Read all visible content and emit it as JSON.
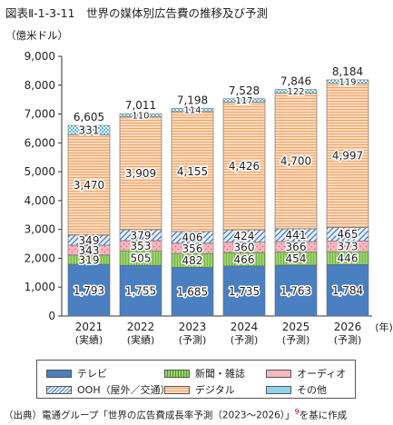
{
  "title": "図表Ⅱ-1-3-11　世界の媒体別広告費の推移及び予測",
  "unit_label": "（億米ドル）",
  "source": {
    "before": "（出典）電通グループ「世界の広告費成長率予測（2023～2026）」",
    "note_mark": "9",
    "after": "を基に作成"
  },
  "colors": {
    "tv": "#4a7fc1",
    "news": "#9bd26b",
    "audio": "#f4a5b0",
    "ooh": "#a9c8e8",
    "digital": "#f7c7a0",
    "other": "#8fd3e8"
  },
  "chart_data": {
    "type": "bar",
    "stacked": true,
    "categories": [
      "2021",
      "2022",
      "2023",
      "2024",
      "2025",
      "2026"
    ],
    "category_sublabels": [
      "(実績)",
      "(実績)",
      "(予測)",
      "(予測)",
      "(予測)",
      "(予測)"
    ],
    "x_unit_label": "(年)",
    "ylim": [
      0,
      9000
    ],
    "yticks": [
      "0",
      "1,000",
      "2,000",
      "3,000",
      "4,000",
      "5,000",
      "6,000",
      "7,000",
      "8,000",
      "9,000"
    ],
    "grid": false,
    "legend_position": "bottom",
    "totals": [
      "6,605",
      "7,011",
      "7,198",
      "7,528",
      "7,846",
      "8,184"
    ],
    "total_values": [
      6605,
      7011,
      7198,
      7528,
      7846,
      8184
    ],
    "series": [
      {
        "name": "テレビ",
        "key": "tv",
        "values": [
          1793,
          1755,
          1685,
          1735,
          1763,
          1784
        ],
        "labels": [
          "1,793",
          "1,755",
          "1,685",
          "1,735",
          "1,763",
          "1,784"
        ]
      },
      {
        "name": "新聞・雑誌",
        "key": "news",
        "values": [
          319,
          505,
          482,
          466,
          454,
          446
        ],
        "labels": [
          "319",
          "505",
          "482",
          "466",
          "454",
          "446"
        ]
      },
      {
        "name": "オーディオ",
        "key": "audio",
        "values": [
          343,
          353,
          356,
          360,
          366,
          373
        ],
        "labels": [
          "343",
          "353",
          "356",
          "360",
          "366",
          "373"
        ]
      },
      {
        "name": "OOH（屋外／交通）",
        "key": "ooh",
        "values": [
          349,
          379,
          406,
          424,
          441,
          465
        ],
        "labels": [
          "349",
          "379",
          "406",
          "424",
          "441",
          "465"
        ]
      },
      {
        "name": "デジタル",
        "key": "digital",
        "values": [
          3470,
          3909,
          4155,
          4426,
          4700,
          4997
        ],
        "labels": [
          "3,470",
          "3,909",
          "4,155",
          "4,426",
          "4,700",
          "4,997"
        ]
      },
      {
        "name": "その他",
        "key": "other",
        "values": [
          331,
          110,
          114,
          117,
          122,
          119
        ],
        "labels": [
          "331",
          "110",
          "114",
          "117",
          "122",
          "119"
        ]
      }
    ]
  }
}
